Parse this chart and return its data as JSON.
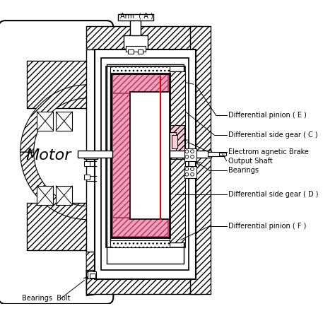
{
  "bg_color": "#ffffff",
  "pink_fill": "#f0a0b8",
  "pink_light": "#f8d0dc",
  "red_line": "#dd0000",
  "black": "#000000",
  "gray_hatch": "#888888",
  "labels": {
    "motor": "Motor",
    "arm": "Arm  ( A )",
    "diff_pinion_e": "Differential pinion ( E )",
    "diff_side_c": "Differential side gear ( C )",
    "em_brake": "Electrom agnetic Brake",
    "output_shaft": "Output Shaft",
    "bearings": "Bearings",
    "diff_side_d": "Differential side gear ( D )",
    "diff_pinion_f": "Differential pinion ( F )",
    "bearings_bolt": "Bearings  Bolt"
  },
  "font_size_motor": 16,
  "font_size_labels": 7
}
